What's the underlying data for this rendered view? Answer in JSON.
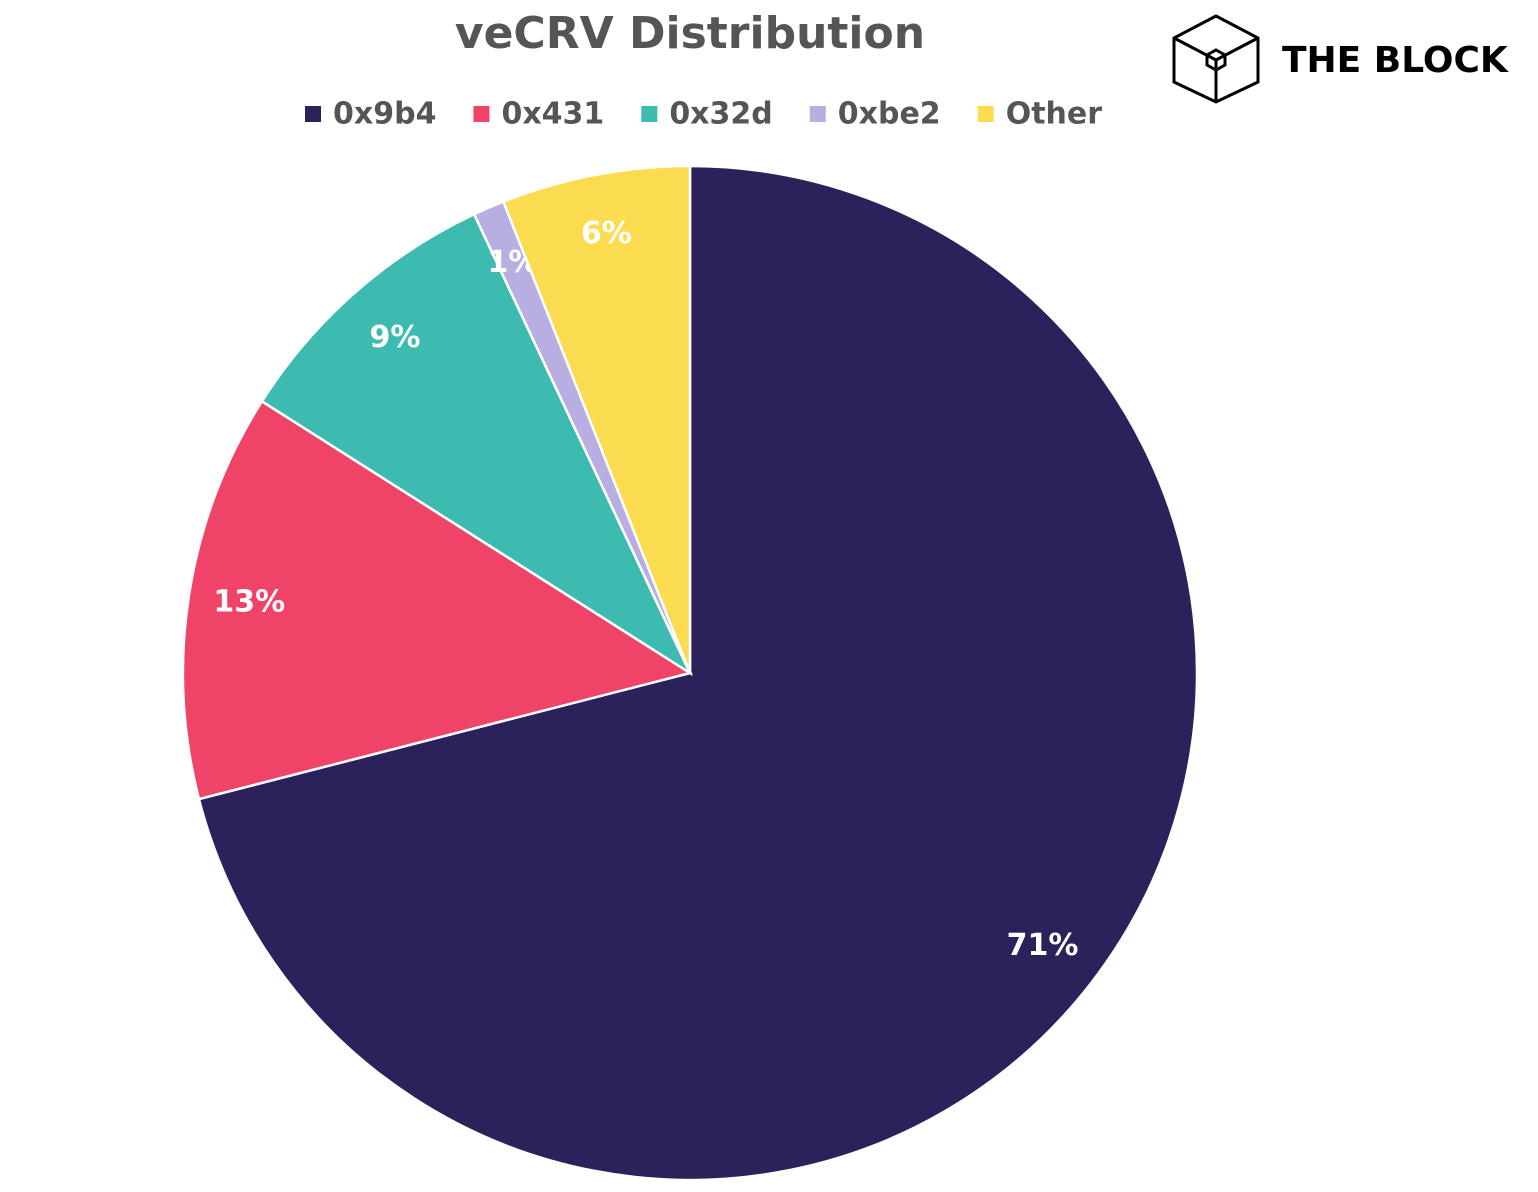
{
  "brand": "THE BLOCK",
  "chart_data": {
    "type": "pie",
    "title": "veCRV Distribution",
    "categories": [
      "0x9b4",
      "0x431",
      "0x32d",
      "0xbe2",
      "Other"
    ],
    "values": [
      71,
      13,
      9,
      1,
      6
    ],
    "value_labels": [
      "71%",
      "13%",
      "9%",
      "1%",
      "6%"
    ],
    "colors": [
      "#2b225c",
      "#ef4368",
      "#3dbbb1",
      "#b8aee2",
      "#fbdc50"
    ]
  }
}
